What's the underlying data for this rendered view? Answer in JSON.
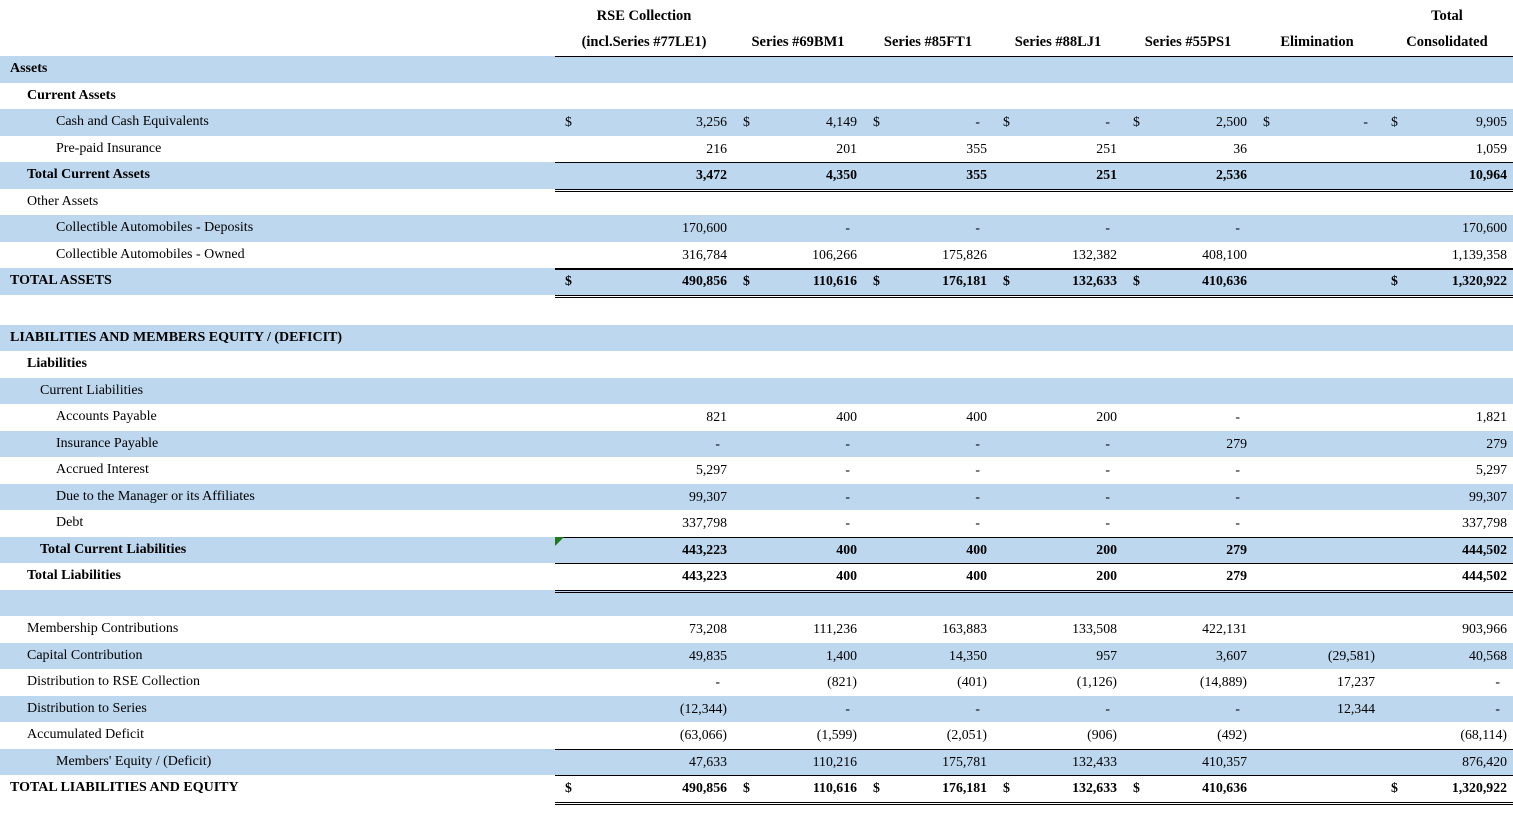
{
  "sheet": {
    "columns": {
      "rse_line1": "RSE Collection",
      "rse_line2": "(incl.Series #77LE1)",
      "s69": "Series #69BM1",
      "s85": "Series #85FT1",
      "s88": "Series #88LJ1",
      "s55": "Series #55PS1",
      "elim": "Elimination",
      "total_line1": "Total",
      "total_line2": "Consolidated"
    }
  },
  "colors": {
    "band_blue": "#BDD7EE",
    "border_black": "#000000",
    "error_indicator_green": "#1E7A1E",
    "stray_dot": "#1a1a1a"
  },
  "rows": [
    {
      "label": "Assets",
      "bg": "blue",
      "bold": true,
      "indent": 0
    },
    {
      "label": "Current Assets",
      "bg": "white",
      "bold": true,
      "indent": 1
    },
    {
      "label": "Cash and Cash Equivalents",
      "bg": "blue",
      "indent": 3,
      "cells": [
        [
          "$",
          "3,256"
        ],
        [
          "$",
          "4,149"
        ],
        [
          "$",
          "-"
        ],
        [
          "$",
          "-"
        ],
        [
          "$",
          "2,500"
        ],
        [
          "$",
          "-"
        ],
        [
          "$",
          "9,905"
        ]
      ]
    },
    {
      "label": "Pre-paid Insurance",
      "bg": "white",
      "indent": 3,
      "rule": "s",
      "cells": [
        [
          "",
          "216"
        ],
        [
          "",
          "201"
        ],
        [
          "",
          "355"
        ],
        [
          "",
          "251"
        ],
        [
          "",
          "36"
        ],
        [
          "",
          ""
        ],
        [
          "",
          "1,059"
        ]
      ]
    },
    {
      "label": "Total Current Assets",
      "bg": "blue",
      "bold": true,
      "indent": 1,
      "rule": "d",
      "cells": [
        [
          "",
          "3,472"
        ],
        [
          "",
          "4,350"
        ],
        [
          "",
          "355"
        ],
        [
          "",
          "251"
        ],
        [
          "",
          "2,536"
        ],
        [
          "",
          ""
        ],
        [
          "",
          "10,964"
        ]
      ]
    },
    {
      "label": "Other Assets",
      "bg": "white",
      "indent": 1
    },
    {
      "label": "Collectible Automobiles - Deposits",
      "bg": "blue",
      "indent": 3,
      "cells": [
        [
          "",
          "170,600"
        ],
        [
          "",
          "-"
        ],
        [
          "",
          "-"
        ],
        [
          "",
          "-"
        ],
        [
          "",
          "-"
        ],
        [
          "",
          ""
        ],
        [
          "",
          "170,600"
        ]
      ]
    },
    {
      "label": "Collectible Automobiles - Owned",
      "bg": "white",
      "indent": 3,
      "rule": "t",
      "cells": [
        [
          "",
          "316,784"
        ],
        [
          "",
          "106,266"
        ],
        [
          "",
          "175,826"
        ],
        [
          "",
          "132,382"
        ],
        [
          "",
          "408,100"
        ],
        [
          "",
          ""
        ],
        [
          "",
          "1,139,358"
        ]
      ]
    },
    {
      "label": "TOTAL ASSETS",
      "bg": "blue",
      "bold": true,
      "indent": 0,
      "rule": "d",
      "dot": true,
      "cells": [
        [
          "$",
          "490,856"
        ],
        [
          "$",
          "110,616"
        ],
        [
          "$",
          "176,181"
        ],
        [
          "$",
          "132,633"
        ],
        [
          "$",
          "410,636"
        ],
        [
          "",
          ""
        ],
        [
          "$",
          "1,320,922"
        ]
      ]
    },
    {
      "spacer": 30
    },
    {
      "label": "LIABILITIES AND MEMBERS EQUITY / (DEFICIT)",
      "bg": "blue",
      "bold": true,
      "indent": 0
    },
    {
      "label": "Liabilities",
      "bg": "white",
      "bold": true,
      "indent": 1
    },
    {
      "label": "Current Liabilities",
      "bg": "blue",
      "indent": 2
    },
    {
      "label": "Accounts Payable",
      "bg": "white",
      "indent": 3,
      "cells": [
        [
          "",
          "821"
        ],
        [
          "",
          "400"
        ],
        [
          "",
          "400"
        ],
        [
          "",
          "200"
        ],
        [
          "",
          "-"
        ],
        [
          "",
          ""
        ],
        [
          "",
          "1,821"
        ]
      ]
    },
    {
      "label": "Insurance Payable",
      "bg": "blue",
      "indent": 3,
      "cells": [
        [
          "",
          "-"
        ],
        [
          "",
          "-"
        ],
        [
          "",
          "-"
        ],
        [
          "",
          "-"
        ],
        [
          "",
          "279"
        ],
        [
          "",
          ""
        ],
        [
          "",
          "279"
        ]
      ]
    },
    {
      "label": "Accrued Interest",
      "bg": "white",
      "indent": 3,
      "cells": [
        [
          "",
          "5,297"
        ],
        [
          "",
          "-"
        ],
        [
          "",
          "-"
        ],
        [
          "",
          "-"
        ],
        [
          "",
          "-"
        ],
        [
          "",
          ""
        ],
        [
          "",
          "5,297"
        ]
      ]
    },
    {
      "label": "Due to the Manager or its Affiliates",
      "bg": "blue",
      "indent": 3,
      "cells": [
        [
          "",
          "99,307"
        ],
        [
          "",
          "-"
        ],
        [
          "",
          "-"
        ],
        [
          "",
          "-"
        ],
        [
          "",
          "-"
        ],
        [
          "",
          ""
        ],
        [
          "",
          "99,307"
        ]
      ]
    },
    {
      "label": "Debt",
      "bg": "white",
      "indent": 3,
      "rule": "s",
      "cells": [
        [
          "",
          "337,798"
        ],
        [
          "",
          "-"
        ],
        [
          "",
          "-"
        ],
        [
          "",
          "-"
        ],
        [
          "",
          "-"
        ],
        [
          "",
          ""
        ],
        [
          "",
          "337,798"
        ]
      ]
    },
    {
      "label": "Total Current Liabilities",
      "bg": "blue",
      "bold": true,
      "indent": 2,
      "rule": "s",
      "tri": true,
      "cells": [
        [
          "",
          "443,223"
        ],
        [
          "",
          "400"
        ],
        [
          "",
          "400"
        ],
        [
          "",
          "200"
        ],
        [
          "",
          "279"
        ],
        [
          "",
          ""
        ],
        [
          "",
          "444,502"
        ]
      ]
    },
    {
      "label": "Total Liabilities",
      "bg": "white",
      "bold": true,
      "indent": 1,
      "rule": "d",
      "cells": [
        [
          "",
          "443,223"
        ],
        [
          "",
          "400"
        ],
        [
          "",
          "400"
        ],
        [
          "",
          "200"
        ],
        [
          "",
          "279"
        ],
        [
          "",
          ""
        ],
        [
          "",
          "444,502"
        ]
      ]
    },
    {
      "label": "",
      "bg": "blue"
    },
    {
      "label": "Membership Contributions",
      "bg": "white",
      "indent": 1,
      "cells": [
        [
          "",
          "73,208"
        ],
        [
          "",
          "111,236"
        ],
        [
          "",
          "163,883"
        ],
        [
          "",
          "133,508"
        ],
        [
          "",
          "422,131"
        ],
        [
          "",
          ""
        ],
        [
          "",
          "903,966"
        ]
      ]
    },
    {
      "label": "Capital Contribution",
      "bg": "blue",
      "indent": 1,
      "cells": [
        [
          "",
          "49,835"
        ],
        [
          "",
          "1,400"
        ],
        [
          "",
          "14,350"
        ],
        [
          "",
          "957"
        ],
        [
          "",
          "3,607"
        ],
        [
          "",
          "(29,581)"
        ],
        [
          "",
          "40,568"
        ]
      ]
    },
    {
      "label": "Distribution to RSE Collection",
      "bg": "white",
      "indent": 1,
      "cells": [
        [
          "",
          "-"
        ],
        [
          "",
          "(821)"
        ],
        [
          "",
          "(401)"
        ],
        [
          "",
          "(1,126)"
        ],
        [
          "",
          "(14,889)"
        ],
        [
          "",
          "17,237"
        ],
        [
          "",
          "-"
        ]
      ]
    },
    {
      "label": "Distribution to Series",
      "bg": "blue",
      "indent": 1,
      "cells": [
        [
          "",
          "(12,344)"
        ],
        [
          "",
          "-"
        ],
        [
          "",
          "-"
        ],
        [
          "",
          "-"
        ],
        [
          "",
          "-"
        ],
        [
          "",
          "12,344"
        ],
        [
          "",
          "-"
        ]
      ]
    },
    {
      "label": "Accumulated Deficit",
      "bg": "white",
      "indent": 1,
      "rule": "s",
      "cells": [
        [
          "",
          "(63,066)"
        ],
        [
          "",
          "(1,599)"
        ],
        [
          "",
          "(2,051)"
        ],
        [
          "",
          "(906)"
        ],
        [
          "",
          "(492)"
        ],
        [
          "",
          ""
        ],
        [
          "",
          "(68,114)"
        ]
      ]
    },
    {
      "label": "Members' Equity / (Deficit)",
      "bg": "blue",
      "indent": 3,
      "rule": "s",
      "cells": [
        [
          "",
          "47,633"
        ],
        [
          "",
          "110,216"
        ],
        [
          "",
          "175,781"
        ],
        [
          "",
          "132,433"
        ],
        [
          "",
          "410,357"
        ],
        [
          "",
          ""
        ],
        [
          "",
          "876,420"
        ]
      ]
    },
    {
      "label": "TOTAL LIABILITIES AND EQUITY",
      "bg": "white",
      "bold": true,
      "indent": 0,
      "rule": "d",
      "cells": [
        [
          "$",
          "490,856"
        ],
        [
          "$",
          "110,616"
        ],
        [
          "$",
          "176,181"
        ],
        [
          "$",
          "132,633"
        ],
        [
          "$",
          "410,636"
        ],
        [
          "",
          ""
        ],
        [
          "$",
          "1,320,922"
        ]
      ]
    }
  ]
}
